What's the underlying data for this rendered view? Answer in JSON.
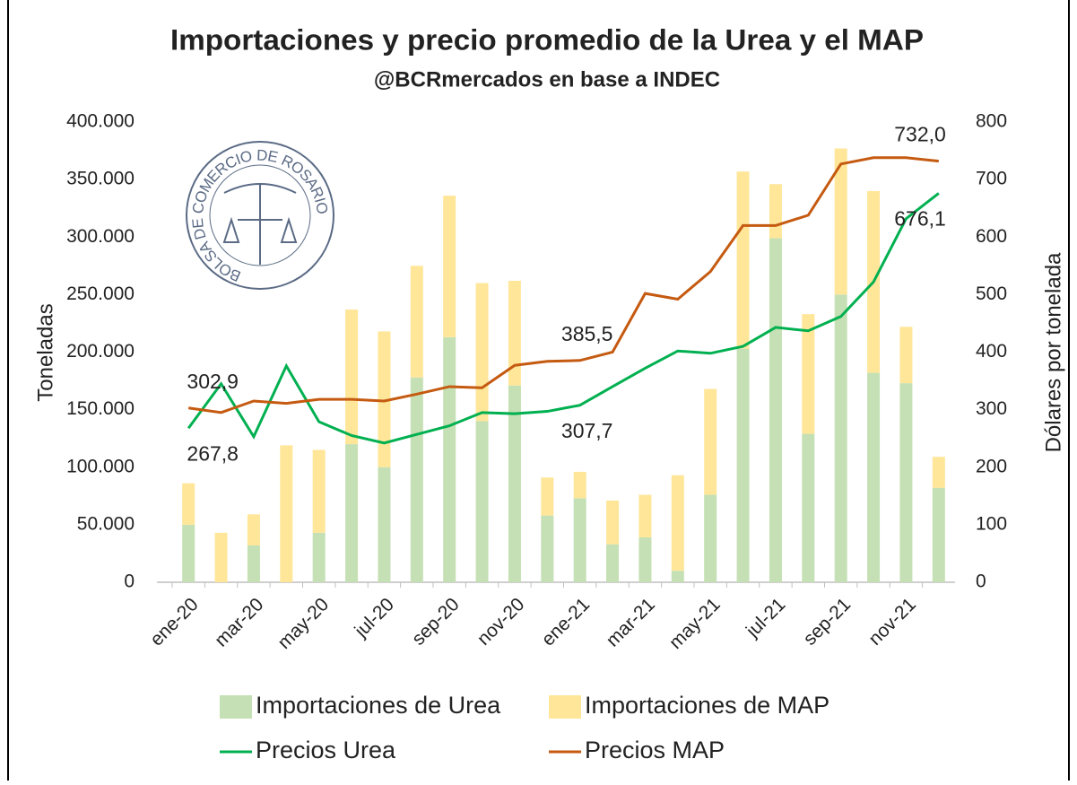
{
  "chart_data": {
    "type": "combo",
    "title": "Importaciones y precio promedio de la Urea y el MAP",
    "subtitle": "@BCRmercados en base a INDEC",
    "logo_text": "BOLSA DE COMERCIO DE ROSARIO",
    "y_label": "Toneladas",
    "y2_label": "Dólares por tonelada",
    "categories": [
      "ene-20",
      null,
      "mar-20",
      null,
      "may-20",
      null,
      "jul-20",
      null,
      "sep-20",
      null,
      "nov-20",
      null,
      "ene-21",
      null,
      "mar-21",
      null,
      "may-21",
      null,
      "jul-21",
      null,
      "sep-21",
      null,
      "nov-21",
      null
    ],
    "ylim": [
      0,
      400000
    ],
    "yticks": [
      0,
      {
        "value": 50000,
        "label": "50.000"
      },
      {
        "value": 100000,
        "label": "100.000"
      },
      {
        "value": 150000,
        "label": "150.000"
      },
      {
        "value": 200000,
        "label": "200.000"
      },
      {
        "value": 250000,
        "label": "250.000"
      },
      {
        "value": 300000,
        "label": "300.000"
      },
      {
        "value": 350000,
        "label": "350.000"
      },
      {
        "value": 400000,
        "label": "400.000"
      }
    ],
    "y2lim": [
      0,
      800
    ],
    "y2ticks": [
      0,
      100,
      200,
      300,
      400,
      500,
      600,
      700,
      800
    ],
    "series": [
      {
        "name": "Importaciones de Urea",
        "type": "bar",
        "color": "#c5e0b4",
        "values": [
          50000,
          0,
          32000,
          0,
          43000,
          120000,
          100000,
          178000,
          213000,
          140000,
          171000,
          58000,
          73000,
          33000,
          39000,
          10000,
          76000,
          203000,
          299000,
          129000,
          250000,
          182000,
          173000,
          82000
        ]
      },
      {
        "name": "Importaciones de MAP",
        "type": "bar",
        "color": "#ffe699",
        "values": [
          36000,
          43000,
          27000,
          119000,
          72000,
          117000,
          118000,
          97000,
          123000,
          120000,
          91000,
          33000,
          23000,
          38000,
          37000,
          83000,
          92000,
          154000,
          47000,
          104000,
          127000,
          158000,
          49000,
          27000
        ]
      },
      {
        "name": "Precios Urea",
        "type": "line",
        "axis": "y2",
        "color": "#00b050",
        "values": [
          267.8,
          345,
          253,
          376,
          279,
          255,
          242,
          257,
          272,
          295,
          293,
          297,
          307.7,
          340,
          372,
          402,
          398,
          410,
          443,
          437,
          462,
          522,
          632,
          676.1
        ],
        "value_labels": [
          "267,8",
          null,
          null,
          null,
          null,
          null,
          null,
          null,
          null,
          null,
          null,
          null,
          "307,7",
          null,
          null,
          null,
          null,
          null,
          null,
          null,
          null,
          null,
          null,
          "676,1"
        ]
      },
      {
        "name": "Precios MAP",
        "type": "line",
        "axis": "y2",
        "color": "#c55a11",
        "values": [
          302.9,
          295,
          315,
          311,
          318,
          318,
          315,
          327,
          340,
          338,
          377,
          384,
          385.5,
          400,
          502,
          492,
          540,
          620,
          620,
          638,
          727,
          738,
          738,
          732.0
        ],
        "value_labels": [
          "302,9",
          null,
          null,
          null,
          null,
          null,
          null,
          null,
          null,
          null,
          null,
          null,
          "385,5",
          null,
          null,
          null,
          null,
          null,
          null,
          null,
          null,
          null,
          null,
          "732,0"
        ]
      }
    ]
  }
}
